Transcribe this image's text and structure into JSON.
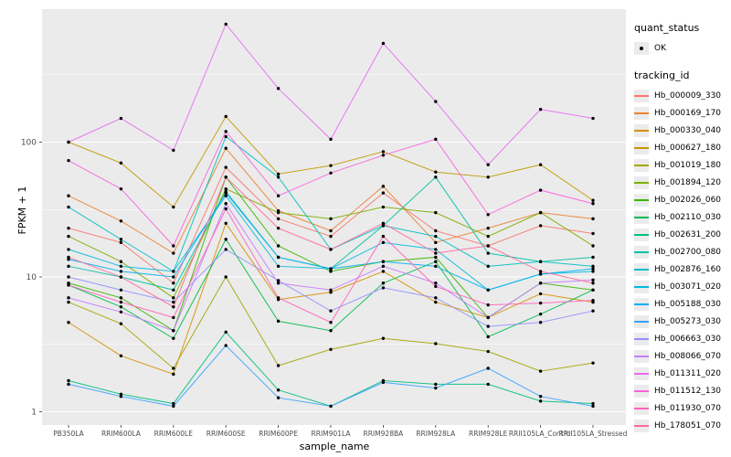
{
  "chart_data": {
    "type": "line",
    "title": "",
    "xlabel": "sample_name",
    "ylabel": "FPKM + 1",
    "y_scale": "log10",
    "ylim": [
      0.8,
      970
    ],
    "y_ticks": [
      1,
      10,
      100
    ],
    "grid": "on",
    "legend_position": "right",
    "point_color": "#000000",
    "panel_color": "#ebebeb",
    "categories": [
      "PB350LA",
      "RRIM600LA",
      "RRIM600LE",
      "RRIM600SE",
      "RRIM600PE",
      "RRIM901LA",
      "RRIM928BA",
      "RRIM928LA",
      "RRIM928LE",
      "RRII105LA_Control",
      "RRII105LA_Stressed"
    ],
    "legend_quant": {
      "title": "quant_status",
      "items": [
        {
          "label": "OK",
          "symbol": "point"
        }
      ]
    },
    "legend_tracking": {
      "title": "tracking_id"
    },
    "series": [
      {
        "name": "Hb_000009_330",
        "color": "#F8766D",
        "values": [
          23,
          18,
          9,
          65,
          27,
          20,
          42,
          22,
          17,
          24,
          21
        ]
      },
      {
        "name": "Hb_000169_170",
        "color": "#EA8331",
        "values": [
          40,
          26,
          15,
          90,
          31,
          22,
          47,
          18,
          23,
          30,
          27
        ]
      },
      {
        "name": "Hb_000330_040",
        "color": "#D89000",
        "values": [
          4.6,
          2.6,
          1.9,
          25,
          6.8,
          7.7,
          11,
          6.5,
          5,
          7.5,
          6.5
        ]
      },
      {
        "name": "Hb_000627_180",
        "color": "#C09B00",
        "values": [
          100,
          70,
          33,
          155,
          58,
          67,
          85,
          60,
          55,
          68,
          37
        ]
      },
      {
        "name": "Hb_001019_180",
        "color": "#A3A500",
        "values": [
          6.5,
          4.5,
          2.1,
          10,
          2.2,
          2.9,
          3.5,
          3.2,
          2.8,
          2.0,
          2.3
        ]
      },
      {
        "name": "Hb_001894_120",
        "color": "#7CAE00",
        "values": [
          20,
          13,
          7,
          45,
          30,
          27,
          33,
          30,
          20,
          30,
          17
        ]
      },
      {
        "name": "Hb_002026_060",
        "color": "#39B600",
        "values": [
          9,
          7,
          4,
          55,
          17,
          11,
          13,
          14,
          5,
          9,
          8
        ]
      },
      {
        "name": "Hb_002110_030",
        "color": "#00BB4E",
        "values": [
          8.7,
          6,
          3.5,
          19,
          4.7,
          4.0,
          9,
          13,
          3.6,
          5.3,
          8
        ]
      },
      {
        "name": "Hb_002631_200",
        "color": "#00BF7D",
        "values": [
          1.7,
          1.35,
          1.15,
          3.9,
          1.45,
          1.1,
          1.7,
          1.6,
          1.6,
          1.2,
          1.15
        ]
      },
      {
        "name": "Hb_002700_080",
        "color": "#00C1A3",
        "values": [
          12,
          10,
          8,
          43,
          14,
          11.5,
          24,
          55,
          15,
          13,
          14
        ]
      },
      {
        "name": "Hb_002876_160",
        "color": "#00BFC4",
        "values": [
          33,
          19,
          11,
          110,
          55,
          16,
          24,
          20,
          12,
          13,
          12
        ]
      },
      {
        "name": "Hb_003071_020",
        "color": "#00BAE0",
        "values": [
          16,
          12,
          11,
          40,
          12,
          11.5,
          18,
          16,
          8,
          10.5,
          11
        ]
      },
      {
        "name": "Hb_005188_030",
        "color": "#00B0F6",
        "values": [
          13.5,
          11,
          10,
          42,
          14,
          11.5,
          13,
          12,
          8,
          10.5,
          11.5
        ]
      },
      {
        "name": "Hb_005273_030",
        "color": "#35A2FF",
        "values": [
          1.6,
          1.3,
          1.1,
          3.1,
          1.27,
          1.1,
          1.65,
          1.5,
          2.1,
          1.3,
          1.1
        ]
      },
      {
        "name": "Hb_006663_030",
        "color": "#9590FF",
        "values": [
          10,
          8,
          6.5,
          16,
          9.4,
          5.6,
          8.3,
          7,
          4.3,
          4.6,
          5.6
        ]
      },
      {
        "name": "Hb_008066_070",
        "color": "#C77CFF",
        "values": [
          7,
          5.5,
          4,
          35,
          9,
          8,
          12,
          9,
          5,
          9,
          9.5
        ]
      },
      {
        "name": "Hb_011311_020",
        "color": "#E76BF3",
        "values": [
          100,
          150,
          87,
          750,
          250,
          105,
          540,
          200,
          68,
          175,
          150
        ]
      },
      {
        "name": "Hb_011512_130",
        "color": "#FA62DB",
        "values": [
          73,
          45,
          17,
          120,
          40,
          59,
          80,
          105,
          29,
          44,
          35
        ]
      },
      {
        "name": "Hb_011930_070",
        "color": "#FF62BC",
        "values": [
          8.7,
          6.5,
          5,
          32,
          7,
          4.6,
          20,
          8.5,
          6.2,
          6.4,
          6.7
        ]
      },
      {
        "name": "Hb_178051_070",
        "color": "#FF6A98",
        "values": [
          14,
          10,
          6,
          55,
          23,
          16,
          25,
          15,
          17,
          11,
          9
        ]
      }
    ]
  }
}
